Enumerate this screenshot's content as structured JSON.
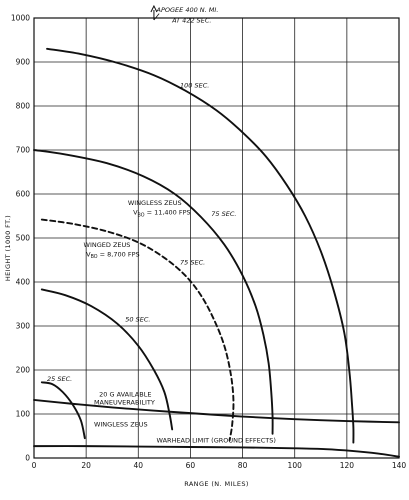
{
  "chart_data": {
    "type": "line",
    "title": "",
    "xlabel": "RANGE (N. MILES)",
    "ylabel": "HEIGHT (1000 FT.)",
    "xlim": [
      0,
      140
    ],
    "ylim": [
      0,
      1000
    ],
    "xticks": [
      0,
      20,
      40,
      60,
      80,
      100,
      120,
      140
    ],
    "yticks": [
      0,
      100,
      200,
      300,
      400,
      500,
      600,
      700,
      800,
      900,
      1000
    ],
    "grid": true,
    "series": [
      {
        "name": "25 SEC.",
        "style": "solid",
        "points": [
          [
            3,
            172
          ],
          [
            7,
            168
          ],
          [
            11,
            150
          ],
          [
            15,
            120
          ],
          [
            18,
            85
          ],
          [
            19.5,
            45
          ]
        ]
      },
      {
        "name": "50 SEC.",
        "style": "solid",
        "points": [
          [
            3,
            383
          ],
          [
            12,
            370
          ],
          [
            22,
            345
          ],
          [
            32,
            305
          ],
          [
            40,
            255
          ],
          [
            46,
            200
          ],
          [
            50,
            150
          ],
          [
            52,
            100
          ],
          [
            53,
            65
          ]
        ]
      },
      {
        "name": "75 SEC.",
        "style": "dashed",
        "points": [
          [
            3,
            542
          ],
          [
            15,
            532
          ],
          [
            28,
            515
          ],
          [
            40,
            490
          ],
          [
            50,
            455
          ],
          [
            58,
            415
          ],
          [
            64,
            370
          ],
          [
            69,
            315
          ],
          [
            73,
            255
          ],
          [
            75.5,
            190
          ],
          [
            76.5,
            130
          ],
          [
            76,
            75
          ],
          [
            75,
            40
          ]
        ]
      },
      {
        "name": "75 SEC.",
        "style": "solid",
        "points": [
          [
            0,
            700
          ],
          [
            12,
            690
          ],
          [
            28,
            670
          ],
          [
            42,
            640
          ],
          [
            54,
            600
          ],
          [
            64,
            548
          ],
          [
            73,
            485
          ],
          [
            80,
            415
          ],
          [
            85,
            345
          ],
          [
            88,
            280
          ],
          [
            90,
            215
          ],
          [
            91,
            150
          ],
          [
            91.5,
            95
          ],
          [
            91.5,
            55
          ]
        ]
      },
      {
        "name": "100 SEC.",
        "style": "solid",
        "points": [
          [
            5,
            930
          ],
          [
            18,
            918
          ],
          [
            32,
            898
          ],
          [
            46,
            870
          ],
          [
            58,
            835
          ],
          [
            70,
            790
          ],
          [
            80,
            740
          ],
          [
            89,
            685
          ],
          [
            97,
            620
          ],
          [
            104,
            550
          ],
          [
            110,
            470
          ],
          [
            115,
            380
          ],
          [
            119,
            285
          ],
          [
            121,
            195
          ],
          [
            122,
            120
          ],
          [
            122.5,
            70
          ],
          [
            122.5,
            35
          ]
        ]
      },
      {
        "name": "WINGLESS ZEUS",
        "style": "solid",
        "points": [
          [
            0,
            132
          ],
          [
            15,
            123
          ],
          [
            30,
            115
          ],
          [
            45,
            108
          ],
          [
            60,
            102
          ],
          [
            75,
            96
          ],
          [
            90,
            91
          ],
          [
            105,
            87
          ],
          [
            120,
            84
          ],
          [
            140,
            81
          ]
        ]
      },
      {
        "name": "WARHEAD LIMIT (GROUND EFFECTS)",
        "style": "solid",
        "points": [
          [
            0,
            27
          ],
          [
            20,
            27
          ],
          [
            40,
            26
          ],
          [
            60,
            25
          ],
          [
            80,
            24
          ],
          [
            100,
            22
          ],
          [
            112,
            20
          ],
          [
            122,
            16
          ],
          [
            132,
            10
          ],
          [
            140,
            3
          ]
        ]
      }
    ],
    "annotations": [
      {
        "text": "APOGEE 400 N. MI.",
        "x": 47,
        "y": 1014
      },
      {
        "text": "AT 422 SEC.",
        "x": 53,
        "y": 990
      },
      {
        "text": "100 SEC.",
        "x": 56,
        "y": 842
      },
      {
        "text": "WINGLESS ZEUS",
        "x": 36,
        "y": 575
      },
      {
        "text": "VBO = 11,400 FPS",
        "x": 38,
        "y": 553
      },
      {
        "text": "75 SEC.",
        "x": 68,
        "y": 550
      },
      {
        "text": "WINGED ZEUS",
        "x": 19,
        "y": 480
      },
      {
        "text": "VBO = 8,700 FPS",
        "x": 20,
        "y": 458
      },
      {
        "text": "75 SEC.",
        "x": 56,
        "y": 440
      },
      {
        "text": "50 SEC.",
        "x": 35,
        "y": 310
      },
      {
        "text": "25 SEC.",
        "x": 5,
        "y": 175
      },
      {
        "text": "20 G AVAILABLE",
        "x": 25,
        "y": 140
      },
      {
        "text": "MANEUVERABILITY",
        "x": 23,
        "y": 122
      },
      {
        "text": "WINGLESS ZEUS",
        "x": 23,
        "y": 72
      },
      {
        "text": "WARHEAD LIMIT (GROUND EFFECTS)",
        "x": 47,
        "y": 35
      }
    ]
  }
}
